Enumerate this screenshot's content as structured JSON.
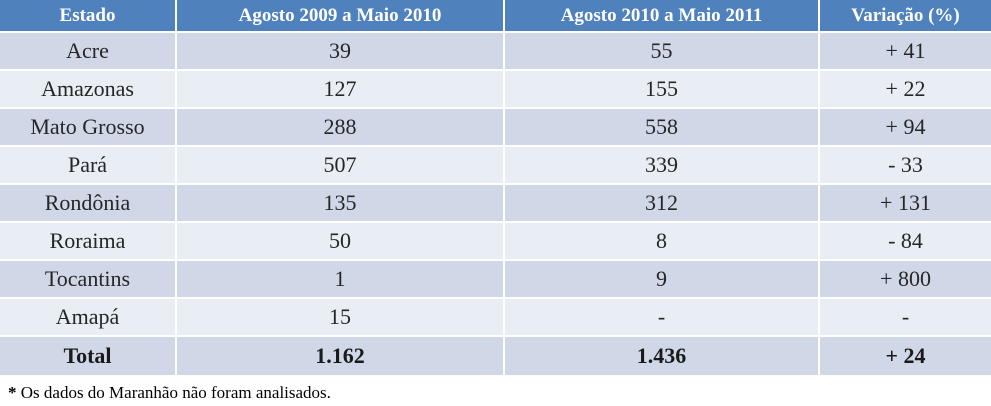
{
  "table": {
    "headers": [
      "Estado",
      "Agosto 2009 a Maio 2010",
      "Agosto 2010 a Maio 2011",
      "Variação (%)"
    ],
    "rows": [
      [
        "Acre",
        "39",
        "55",
        "+ 41"
      ],
      [
        "Amazonas",
        "127",
        "155",
        "+ 22"
      ],
      [
        "Mato Grosso",
        "288",
        "558",
        "+ 94"
      ],
      [
        "Pará",
        "507",
        "339",
        "- 33"
      ],
      [
        "Rondônia",
        "135",
        "312",
        "+ 131"
      ],
      [
        "Roraima",
        "50",
        "8",
        "- 84"
      ],
      [
        "Tocantins",
        "1",
        "9",
        "+ 800"
      ],
      [
        "Amapá",
        "15",
        "-",
        "-"
      ]
    ],
    "total": [
      "Total",
      "1.162",
      "1.436",
      "+ 24"
    ]
  },
  "footnote": {
    "marker": "*",
    "text": " Os dados do Maranhão não foram analisados."
  },
  "colors": {
    "header_bg": "#4f81bd",
    "row_odd_bg": "#d0d8e8",
    "row_even_bg": "#e9edf4"
  }
}
